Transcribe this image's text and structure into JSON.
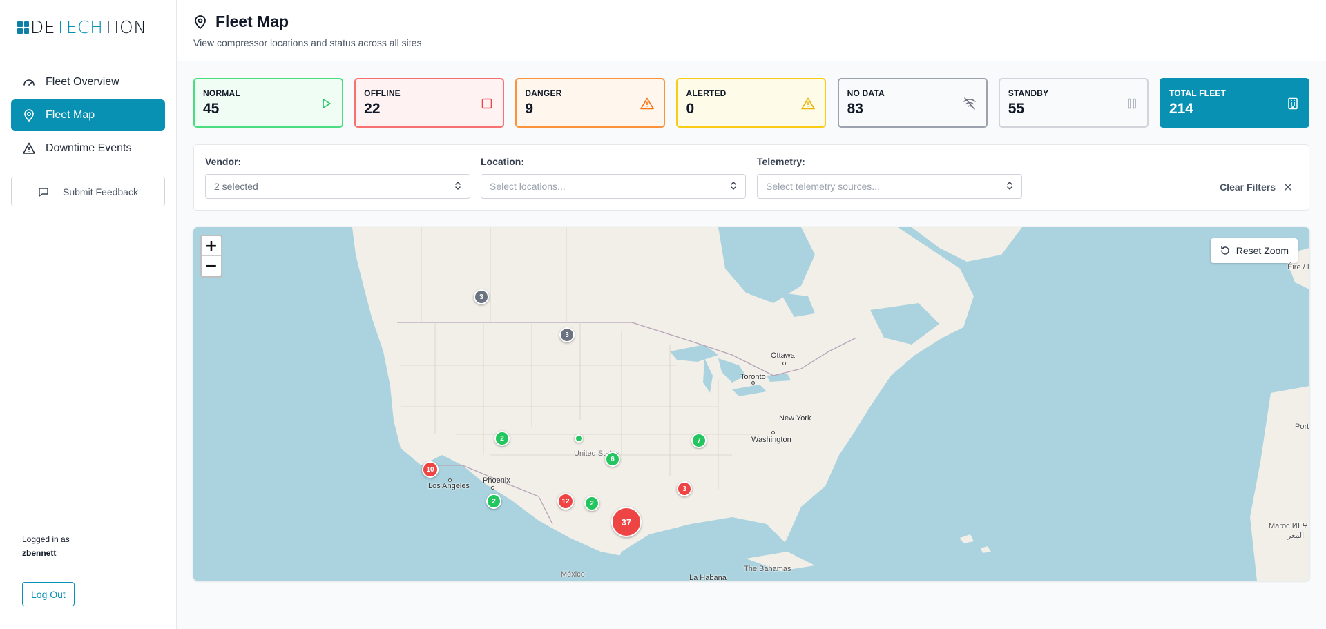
{
  "brand": {
    "prefix": "DE",
    "accent": "TECH",
    "suffix": "TION"
  },
  "sidebar": {
    "items": [
      {
        "label": "Fleet Overview",
        "icon": "gauge-icon"
      },
      {
        "label": "Fleet Map",
        "icon": "map-pin-icon",
        "active": true
      },
      {
        "label": "Downtime Events",
        "icon": "warning-icon"
      }
    ],
    "feedback_label": "Submit Feedback",
    "logged_in_label": "Logged in as",
    "username": "zbennett",
    "logout_label": "Log Out"
  },
  "header": {
    "title": "Fleet Map",
    "subtitle": "View compressor locations and status across all sites"
  },
  "stats": [
    {
      "key": "normal",
      "label": "NORMAL",
      "value": "45",
      "color": "#22c55e"
    },
    {
      "key": "offline",
      "label": "OFFLINE",
      "value": "22",
      "color": "#ef4444"
    },
    {
      "key": "danger",
      "label": "DANGER",
      "value": "9",
      "color": "#f97316"
    },
    {
      "key": "alerted",
      "label": "ALERTED",
      "value": "0",
      "color": "#eab308"
    },
    {
      "key": "nodata",
      "label": "NO DATA",
      "value": "83",
      "color": "#6b7280"
    },
    {
      "key": "standby",
      "label": "STANDBY",
      "value": "55",
      "color": "#9ca3af"
    },
    {
      "key": "total",
      "label": "TOTAL FLEET",
      "value": "214",
      "color": "#0891b2"
    }
  ],
  "filters": {
    "vendor": {
      "label": "Vendor:",
      "value": "2 selected"
    },
    "location": {
      "label": "Location:",
      "placeholder": "Select locations..."
    },
    "telemetry": {
      "label": "Telemetry:",
      "placeholder": "Select telemetry sources..."
    },
    "clear_label": "Clear Filters"
  },
  "map": {
    "zoom_in": "+",
    "zoom_out": "−",
    "reset_label": "Reset Zoom",
    "cities": {
      "ottawa": "Ottawa",
      "toronto": "Toronto",
      "new_york": "New York",
      "washington": "Washington",
      "los_angeles": "Los Angeles",
      "phoenix": "Phoenix",
      "united_states": "United States",
      "mexico": "México",
      "la_habana": "La Habana",
      "bahamas": "The Bahamas",
      "eire": "Éire / I",
      "portugal": "Port",
      "maroc": "Maroc ⵍⵎⵖ",
      "maghreb": "المغر"
    },
    "clusters": [
      {
        "count": "3",
        "status": "nodata"
      },
      {
        "count": "3",
        "status": "nodata"
      },
      {
        "count": "2",
        "status": "normal"
      },
      {
        "count": "",
        "status": "normal"
      },
      {
        "count": "7",
        "status": "normal"
      },
      {
        "count": "6",
        "status": "normal"
      },
      {
        "count": "10",
        "status": "offline"
      },
      {
        "count": "12",
        "status": "offline"
      },
      {
        "count": "2",
        "status": "normal"
      },
      {
        "count": "2",
        "status": "normal"
      },
      {
        "count": "3",
        "status": "offline"
      },
      {
        "count": "37",
        "status": "offline"
      }
    ]
  }
}
